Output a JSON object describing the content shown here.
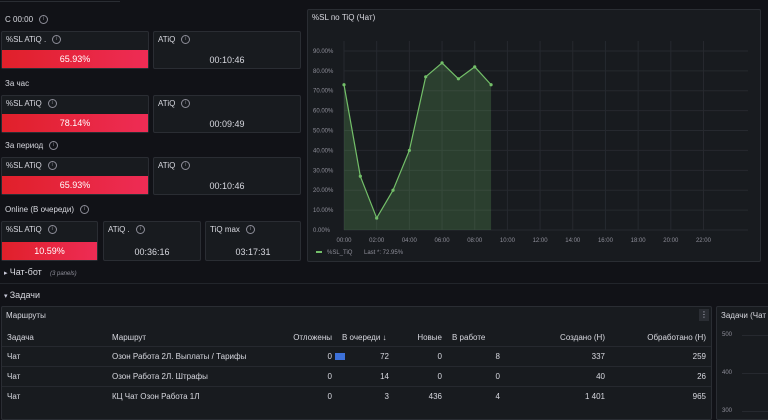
{
  "sections": {
    "c0000": "С 00:00",
    "hour": "За час",
    "period": "За период",
    "online": "Online (В очереди)",
    "chatbot": "Чат-бот",
    "chatbot_panels": "(3 panels)",
    "tasks": "Задачи"
  },
  "stats": {
    "c0000_sl": {
      "title": "%SL ATiQ .",
      "value": "65.93%"
    },
    "c0000_atiq": {
      "title": "ATiQ",
      "value": "00:10:46"
    },
    "hour_sl": {
      "title": "%SL ATiQ",
      "value": "78.14%"
    },
    "hour_atiq": {
      "title": "ATiQ",
      "value": "00:09:49"
    },
    "period_sl": {
      "title": "%SL ATiQ",
      "value": "65.93%"
    },
    "period_atiq": {
      "title": "ATiQ",
      "value": "00:10:46"
    },
    "online_sl": {
      "title": "%SL ATiQ",
      "value": "10.59%"
    },
    "online_atiq": {
      "title": "ATiQ .",
      "value": "00:36:16"
    },
    "online_tiq": {
      "title": "TiQ max",
      "value": "03:17:31"
    }
  },
  "colors": {
    "series": "#73bf69",
    "stat_red": "#e0202a",
    "bar": "#3d71d9"
  },
  "chart_data": {
    "type": "area",
    "title": "%SL по TiQ (Чат)",
    "x": [
      "00:00",
      "01:00",
      "02:00",
      "03:00",
      "04:00",
      "05:00",
      "06:00",
      "07:00",
      "08:00",
      "09:00"
    ],
    "series": [
      {
        "name": "%SL_TiQ",
        "values": [
          73,
          27,
          6,
          20,
          40,
          77,
          84,
          76,
          82,
          73
        ]
      }
    ],
    "x_ticks": [
      "00:00",
      "02:00",
      "04:00",
      "06:00",
      "08:00",
      "10:00",
      "12:00",
      "14:00",
      "16:00",
      "18:00",
      "20:00",
      "22:00"
    ],
    "y_ticks": [
      "0.00%",
      "10.00%",
      "20.00%",
      "30.00%",
      "40.00%",
      "50.00%",
      "60.00%",
      "70.00%",
      "80.00%",
      "90.00%"
    ],
    "ylim": [
      0,
      95
    ],
    "xlim": [
      0,
      23.5
    ],
    "legend": "%SL_TiQ",
    "legend_last": "Last *: 72.95%"
  },
  "routes": {
    "title": "Маршруты",
    "columns": [
      "Задача",
      "Маршрут",
      "Отложены",
      "В очереди ↓",
      "Новые",
      "В работе",
      "Создано (Н)",
      "Обработано (Н)"
    ],
    "rows": [
      {
        "task": "Чат",
        "route": "Озон Работа 2Л. Выплаты / Тарифы",
        "delayed": "0",
        "queue": "72",
        "new": "0",
        "work": "8",
        "created": "337",
        "processed": "259",
        "bar": 0.17
      },
      {
        "task": "Чат",
        "route": "Озон Работа 2Л. Штрафы",
        "delayed": "0",
        "queue": "14",
        "new": "0",
        "work": "0",
        "created": "40",
        "processed": "26",
        "bar": 0
      },
      {
        "task": "Чат",
        "route": "КЦ Чат Озон Работа 1Л",
        "delayed": "0",
        "queue": "3",
        "new": "436",
        "work": "4",
        "created": "1 401",
        "processed": "965",
        "bar": 0
      }
    ]
  },
  "tasks_panel": {
    "title": "Задачи (Чат",
    "y_ticks": [
      "500",
      "400",
      "300"
    ]
  }
}
